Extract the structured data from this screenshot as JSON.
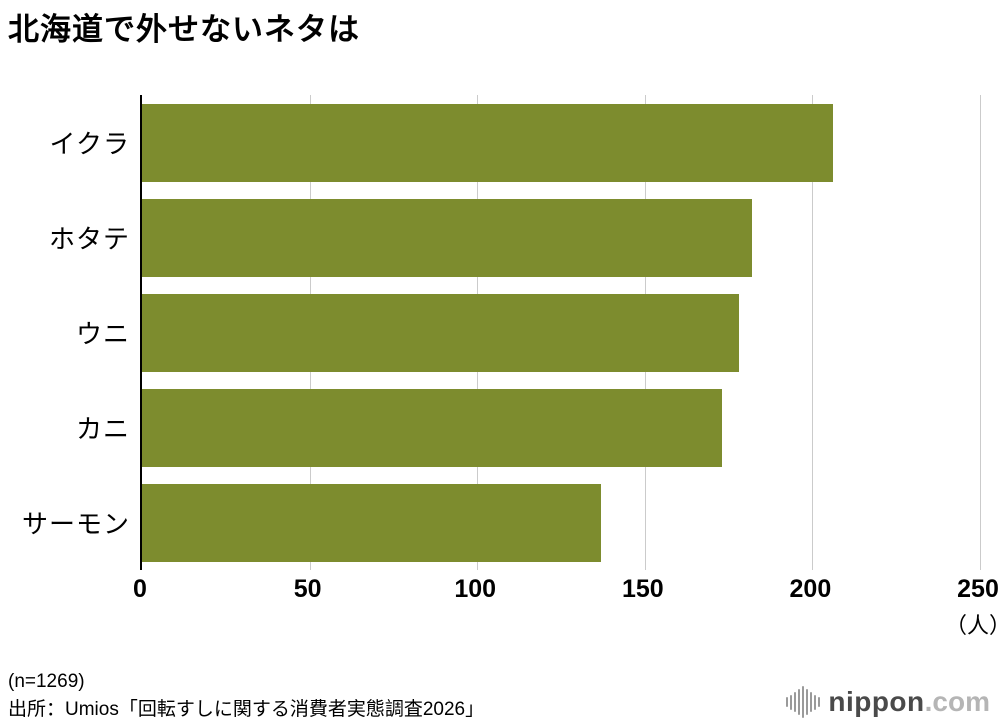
{
  "title": "北海道で外せないネタは",
  "chart_data": {
    "type": "bar",
    "orientation": "horizontal",
    "title": "北海道で外せないネタは",
    "categories": [
      "イクラ",
      "ホタテ",
      "ウニ",
      "カニ",
      "サーモン"
    ],
    "values": [
      206,
      182,
      178,
      173,
      137
    ],
    "xlim": [
      0,
      250
    ],
    "xticks": [
      0,
      50,
      100,
      150,
      200,
      250
    ],
    "unit_label": "（人）",
    "bar_color": "#7d8c2e",
    "grid": true,
    "gridline_color": "#cbcbcb"
  },
  "footer": {
    "sample": "(n=1269)",
    "source": "出所：Umios「回転すしに関する消費者実態調査2026」"
  },
  "logo": {
    "name": "nippon",
    "tld": ".com"
  }
}
